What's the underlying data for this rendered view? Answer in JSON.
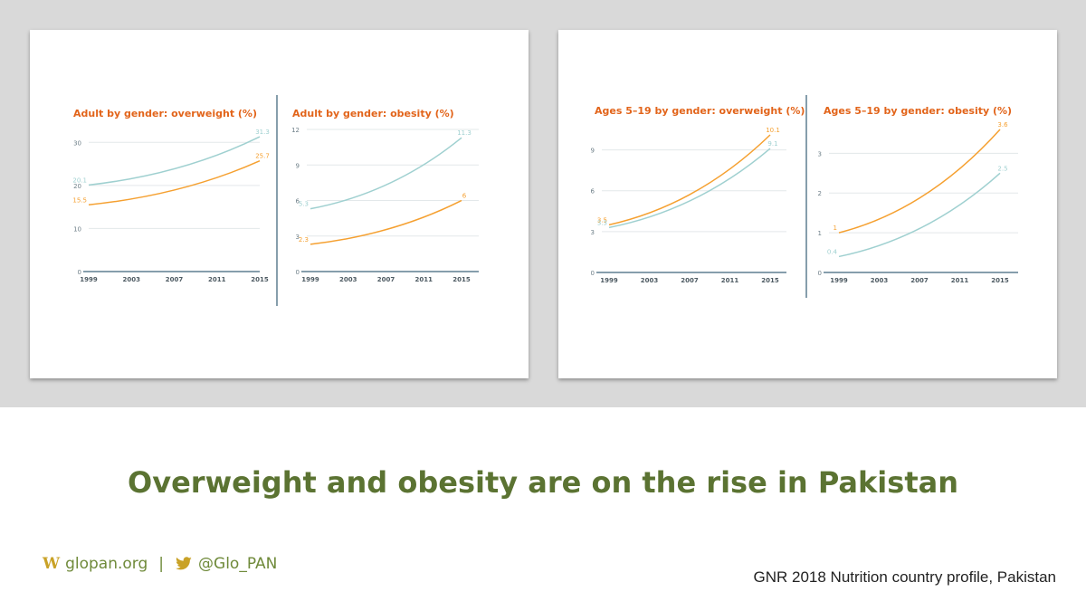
{
  "headline": "Overweight and obesity are on the rise in Pakistan",
  "footer": {
    "website_prefix": "W",
    "website": "glopan.org",
    "separator": "|",
    "handle": "@Glo_PAN",
    "source": "GNR 2018 Nutrition country profile, Pakistan"
  },
  "colors": {
    "title": "#e2641a",
    "series_blue": "#9fd0d0",
    "series_orange": "#f5a030",
    "axis": "#5f7f91",
    "grid": "#e3e8ea",
    "tick": "#6e7f88",
    "headline": "#5b7332"
  },
  "chart_data": [
    {
      "type": "line",
      "title": "Adult by gender: overweight (%)",
      "x": [
        1999,
        2003,
        2007,
        2011,
        2015
      ],
      "x_ticks": [
        "1999",
        "2003",
        "2007",
        "2011",
        "2015"
      ],
      "ylim": [
        0,
        33
      ],
      "y_ticks": [
        0,
        10,
        20,
        30
      ],
      "series": [
        {
          "color": "blue",
          "start": [
            1999,
            20.1
          ],
          "end": [
            2015,
            31.3
          ],
          "start_label": "20.1",
          "end_label": "31.3"
        },
        {
          "color": "orange",
          "start": [
            1999,
            15.5
          ],
          "end": [
            2015,
            25.7
          ],
          "start_label": "15.5",
          "end_label": "25.7"
        }
      ]
    },
    {
      "type": "line",
      "title": "Adult by gender: obesity (%)",
      "x": [
        1999,
        2003,
        2007,
        2011,
        2015
      ],
      "x_ticks": [
        "1999",
        "2003",
        "2007",
        "2011",
        "2015"
      ],
      "ylim": [
        0,
        12
      ],
      "y_ticks": [
        0,
        3,
        6,
        9,
        12
      ],
      "series": [
        {
          "color": "blue",
          "start": [
            1999,
            5.3
          ],
          "end": [
            2015,
            11.3
          ],
          "start_label": "5.3",
          "end_label": "11.3"
        },
        {
          "color": "orange",
          "start": [
            1999,
            2.3
          ],
          "end": [
            2015,
            6
          ],
          "start_label": "2.3",
          "end_label": "6"
        }
      ]
    },
    {
      "type": "line",
      "title": "Ages 5–19 by gender: overweight (%)",
      "x": [
        1999,
        2003,
        2007,
        2011,
        2015
      ],
      "x_ticks": [
        "1999",
        "2003",
        "2007",
        "2011",
        "2015"
      ],
      "ylim": [
        0,
        10.5
      ],
      "y_ticks": [
        0,
        3,
        6,
        9
      ],
      "series": [
        {
          "color": "orange",
          "start": [
            1999,
            3.5
          ],
          "end": [
            2015,
            10.1
          ],
          "start_label": "3.5",
          "end_label": "10.1"
        },
        {
          "color": "blue",
          "start": [
            1999,
            3.3
          ],
          "end": [
            2015,
            9.1
          ],
          "start_label": "3.3",
          "end_label": "9.1"
        }
      ]
    },
    {
      "type": "line",
      "title": "Ages 5–19 by gender: obesity (%)",
      "x": [
        1999,
        2003,
        2007,
        2011,
        2015
      ],
      "x_ticks": [
        "1999",
        "2003",
        "2007",
        "2011",
        "2015"
      ],
      "ylim": [
        0,
        3.6
      ],
      "y_ticks": [
        0,
        1,
        2,
        3
      ],
      "series": [
        {
          "color": "orange",
          "start": [
            1999,
            1
          ],
          "end": [
            2015,
            3.6
          ],
          "start_label": "1",
          "end_label": "3.6"
        },
        {
          "color": "blue",
          "start": [
            1999,
            0.4
          ],
          "end": [
            2015,
            2.5
          ],
          "start_label": "0.4",
          "end_label": "2.5"
        }
      ]
    }
  ]
}
